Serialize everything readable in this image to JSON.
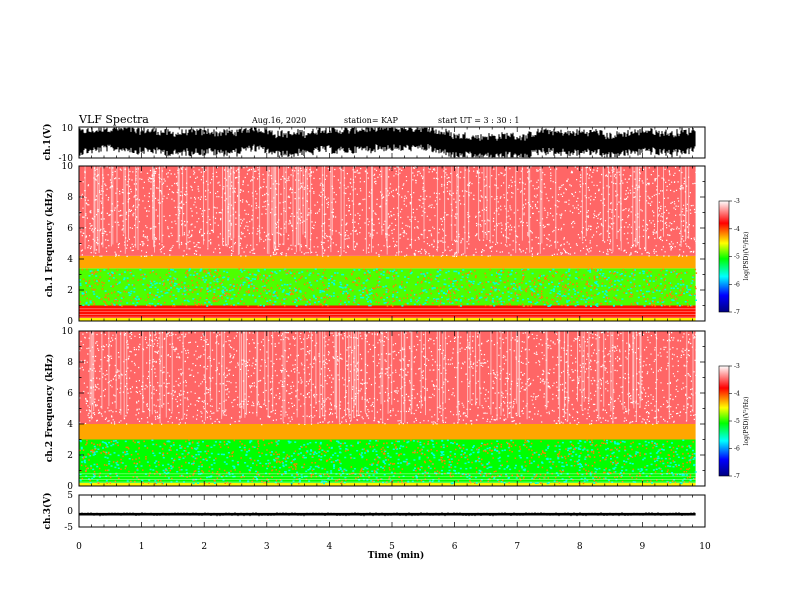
{
  "header": {
    "title": "VLF Spectra",
    "date": "Aug.16, 2020",
    "station": "station= KAP",
    "start": "start  UT  =   3  : 30 : 1"
  },
  "colors": {
    "spectrogram_stops": [
      "#000080",
      "#0000ff",
      "#00ffff",
      "#00ff00",
      "#ffff00",
      "#ff0000",
      "#ffffff"
    ],
    "waveform": "#000000"
  },
  "chart_data": [
    {
      "type": "line",
      "title": "",
      "ylabel": "ch.1(V)",
      "xlim": [
        0,
        10
      ],
      "ylim": [
        -10,
        10
      ],
      "yticks": [
        {
          "value": 10,
          "label": "10"
        },
        {
          "value": -10,
          "label": "-10"
        }
      ],
      "series": [
        {
          "description": "noisy waveform oscillating roughly between -8 and 8 V",
          "amplitude": 8
        }
      ]
    },
    {
      "type": "heatmap",
      "ylabel": "ch.1  Frequency  (kHz)",
      "xlim": [
        0,
        10
      ],
      "ylim": [
        0,
        10
      ],
      "data_extent_x": [
        0,
        9.85
      ],
      "yticks": [
        "0",
        "2",
        "4",
        "6",
        "8",
        "10"
      ],
      "bands": [
        {
          "freq_range": [
            0,
            0.2
          ],
          "log_psd": -4.3
        },
        {
          "freq_range": [
            0.2,
            1.0
          ],
          "log_psd": -3.7
        },
        {
          "freq_range": [
            1.0,
            3.4
          ],
          "log_psd": -4.8
        },
        {
          "freq_range": [
            3.4,
            4.2
          ],
          "log_psd": -4.1
        },
        {
          "freq_range": [
            4.2,
            10
          ],
          "log_psd": -3.4
        }
      ],
      "colorbar": {
        "label": "log(PSD)(V²/Hz)",
        "min": -7,
        "max": -3,
        "ticks": [
          "-3",
          "-4",
          "-5",
          "-6",
          "-7"
        ]
      }
    },
    {
      "type": "heatmap",
      "ylabel": "ch.2  Frequency  (kHz)",
      "xlim": [
        0,
        10
      ],
      "ylim": [
        0,
        10
      ],
      "data_extent_x": [
        0,
        9.85
      ],
      "yticks": [
        "0",
        "2",
        "4",
        "6",
        "8",
        "10"
      ],
      "bands": [
        {
          "freq_range": [
            0,
            0.2
          ],
          "log_psd": -4.3
        },
        {
          "freq_range": [
            0.2,
            3.0
          ],
          "log_psd": -5.0
        },
        {
          "freq_range": [
            3.0,
            4.0
          ],
          "log_psd": -4.1
        },
        {
          "freq_range": [
            4.0,
            10
          ],
          "log_psd": -3.4
        }
      ],
      "colorbar": {
        "label": "log(PSD)(V²/Hz)",
        "min": -7,
        "max": -3,
        "ticks": [
          "-3",
          "-4",
          "-5",
          "-6",
          "-7"
        ]
      }
    },
    {
      "type": "line",
      "title": "",
      "ylabel": "ch.3(V)",
      "xlabel": "Time  (min)",
      "xlim": [
        0,
        10
      ],
      "ylim": [
        -5,
        5
      ],
      "yticks": [
        {
          "value": 5,
          "label": "5"
        },
        {
          "value": 0,
          "label": "0"
        },
        {
          "value": -5,
          "label": "-5"
        }
      ],
      "xticks": [
        "0",
        "1",
        "2",
        "3",
        "4",
        "5",
        "6",
        "7",
        "8",
        "9",
        "10"
      ],
      "series": [
        {
          "description": "thin constant band near -1 V",
          "value": -1.0,
          "amplitude": 0.4
        }
      ]
    }
  ]
}
